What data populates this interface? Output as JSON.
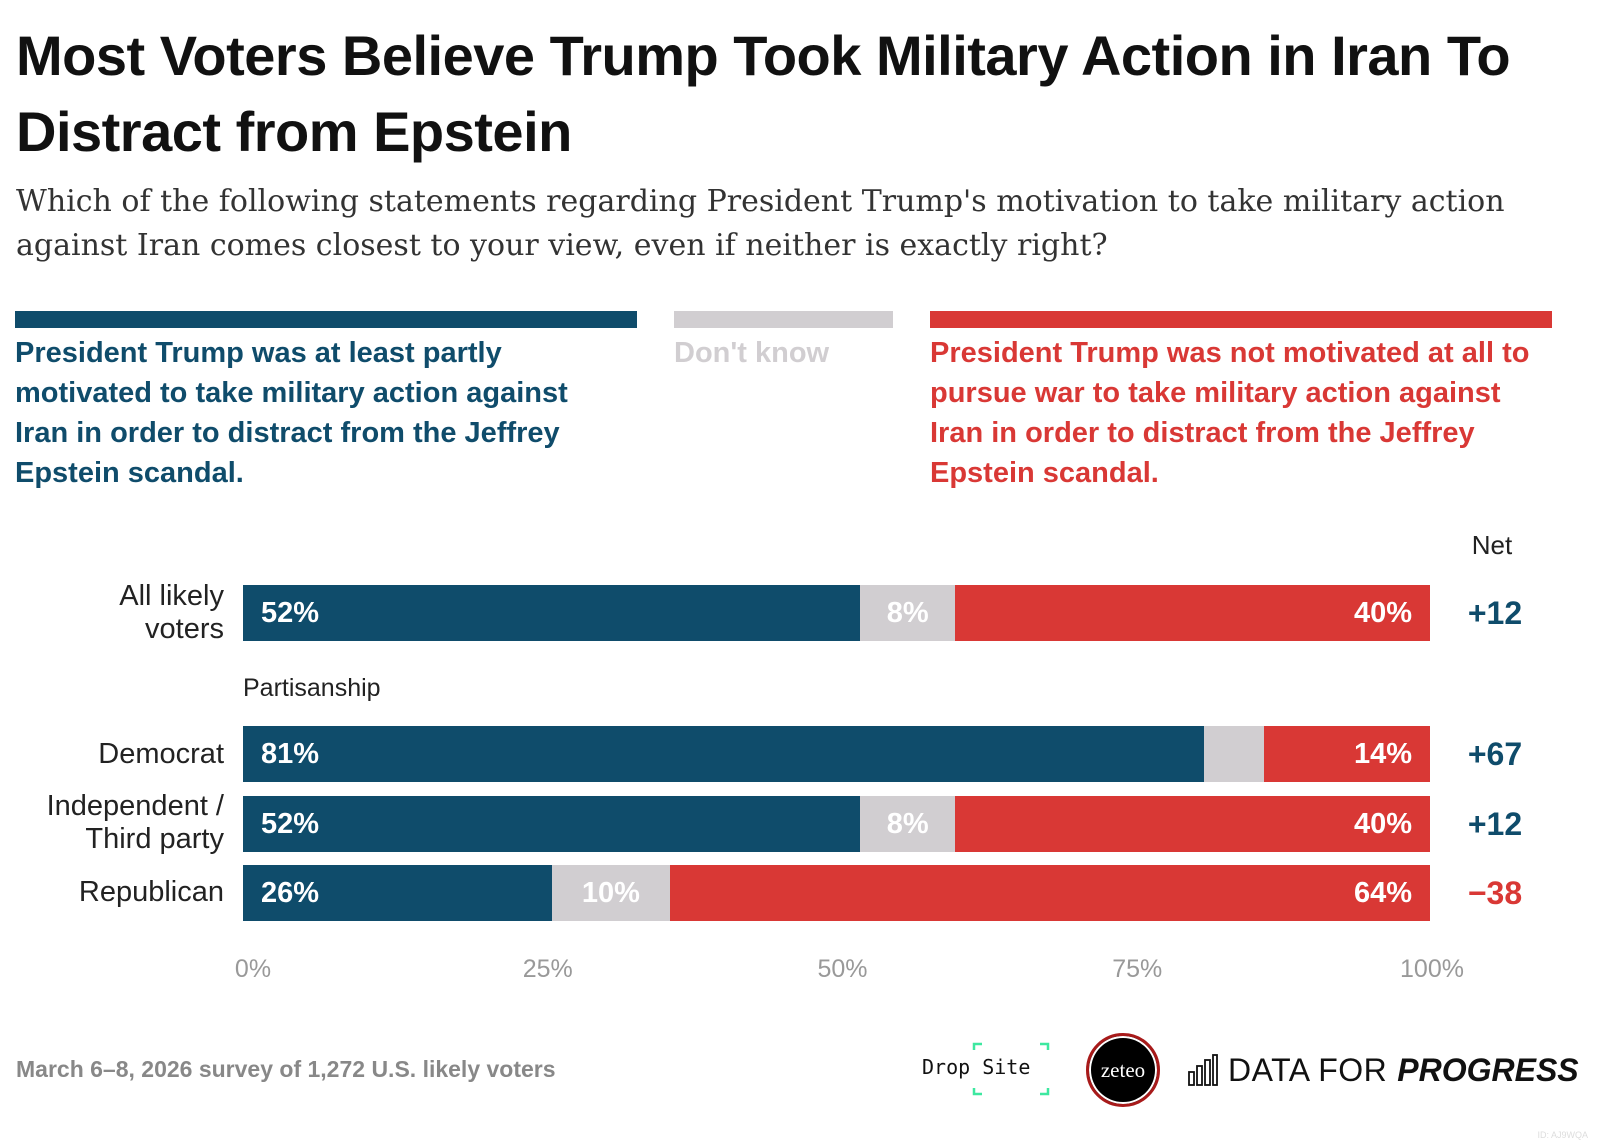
{
  "title": "Most Voters Believe Trump Took Military Action in Iran To Distract from Epstein",
  "subtitle": "Which of the following statements regarding President Trump's motivation to take military action against Iran comes closest to your view, even if neither is exactly right?",
  "colors": {
    "motivated": "#0f4c6b",
    "dont_know": "#d1ced1",
    "not_motivated": "#d93835",
    "net_positive": "#0f4c6b",
    "net_negative": "#d93835"
  },
  "legend": {
    "motivated": "President Trump was at least partly motivated to take military action against Iran in order to distract from the Jeffrey Epstein scandal.",
    "dont_know": "Don't know",
    "not_motivated": "President Trump was not motivated at all to pursue war to take military action against Iran in order to distract from the Jeffrey Epstein scandal."
  },
  "chart_data": {
    "type": "bar",
    "orientation": "horizontal-stacked-100",
    "categories": [
      "All likely voters",
      "Democrat",
      "Independent / Third party",
      "Republican"
    ],
    "group_label": "Partisanship",
    "series": [
      {
        "name": "President Trump was at least partly motivated to take military action against Iran in order to distract from the Jeffrey Epstein scandal.",
        "values": [
          52,
          81,
          52,
          26
        ],
        "labels": [
          "52%",
          "81%",
          "52%",
          "26%"
        ]
      },
      {
        "name": "Don't know",
        "values": [
          8,
          5,
          8,
          10
        ],
        "labels": [
          "8%",
          "",
          "8%",
          "10%"
        ]
      },
      {
        "name": "President Trump was not motivated at all to pursue war to take military action against Iran in order to distract from the Jeffrey Epstein scandal.",
        "values": [
          40,
          14,
          40,
          64
        ],
        "labels": [
          "40%",
          "14%",
          "40%",
          "64%"
        ]
      }
    ],
    "net_header": "Net",
    "net": [
      "+12",
      "+67",
      "+12",
      "−38"
    ],
    "xlim": [
      0,
      100
    ],
    "xticks": [
      "0%",
      "25%",
      "50%",
      "75%",
      "100%"
    ]
  },
  "footer": {
    "note": "March 6–8, 2026 survey of 1,272 U.S. likely voters",
    "logos": [
      "Drop Site",
      "zeteo",
      "DATA FOR",
      "PROGRESS"
    ],
    "id": "ID: AJ9WQA"
  }
}
